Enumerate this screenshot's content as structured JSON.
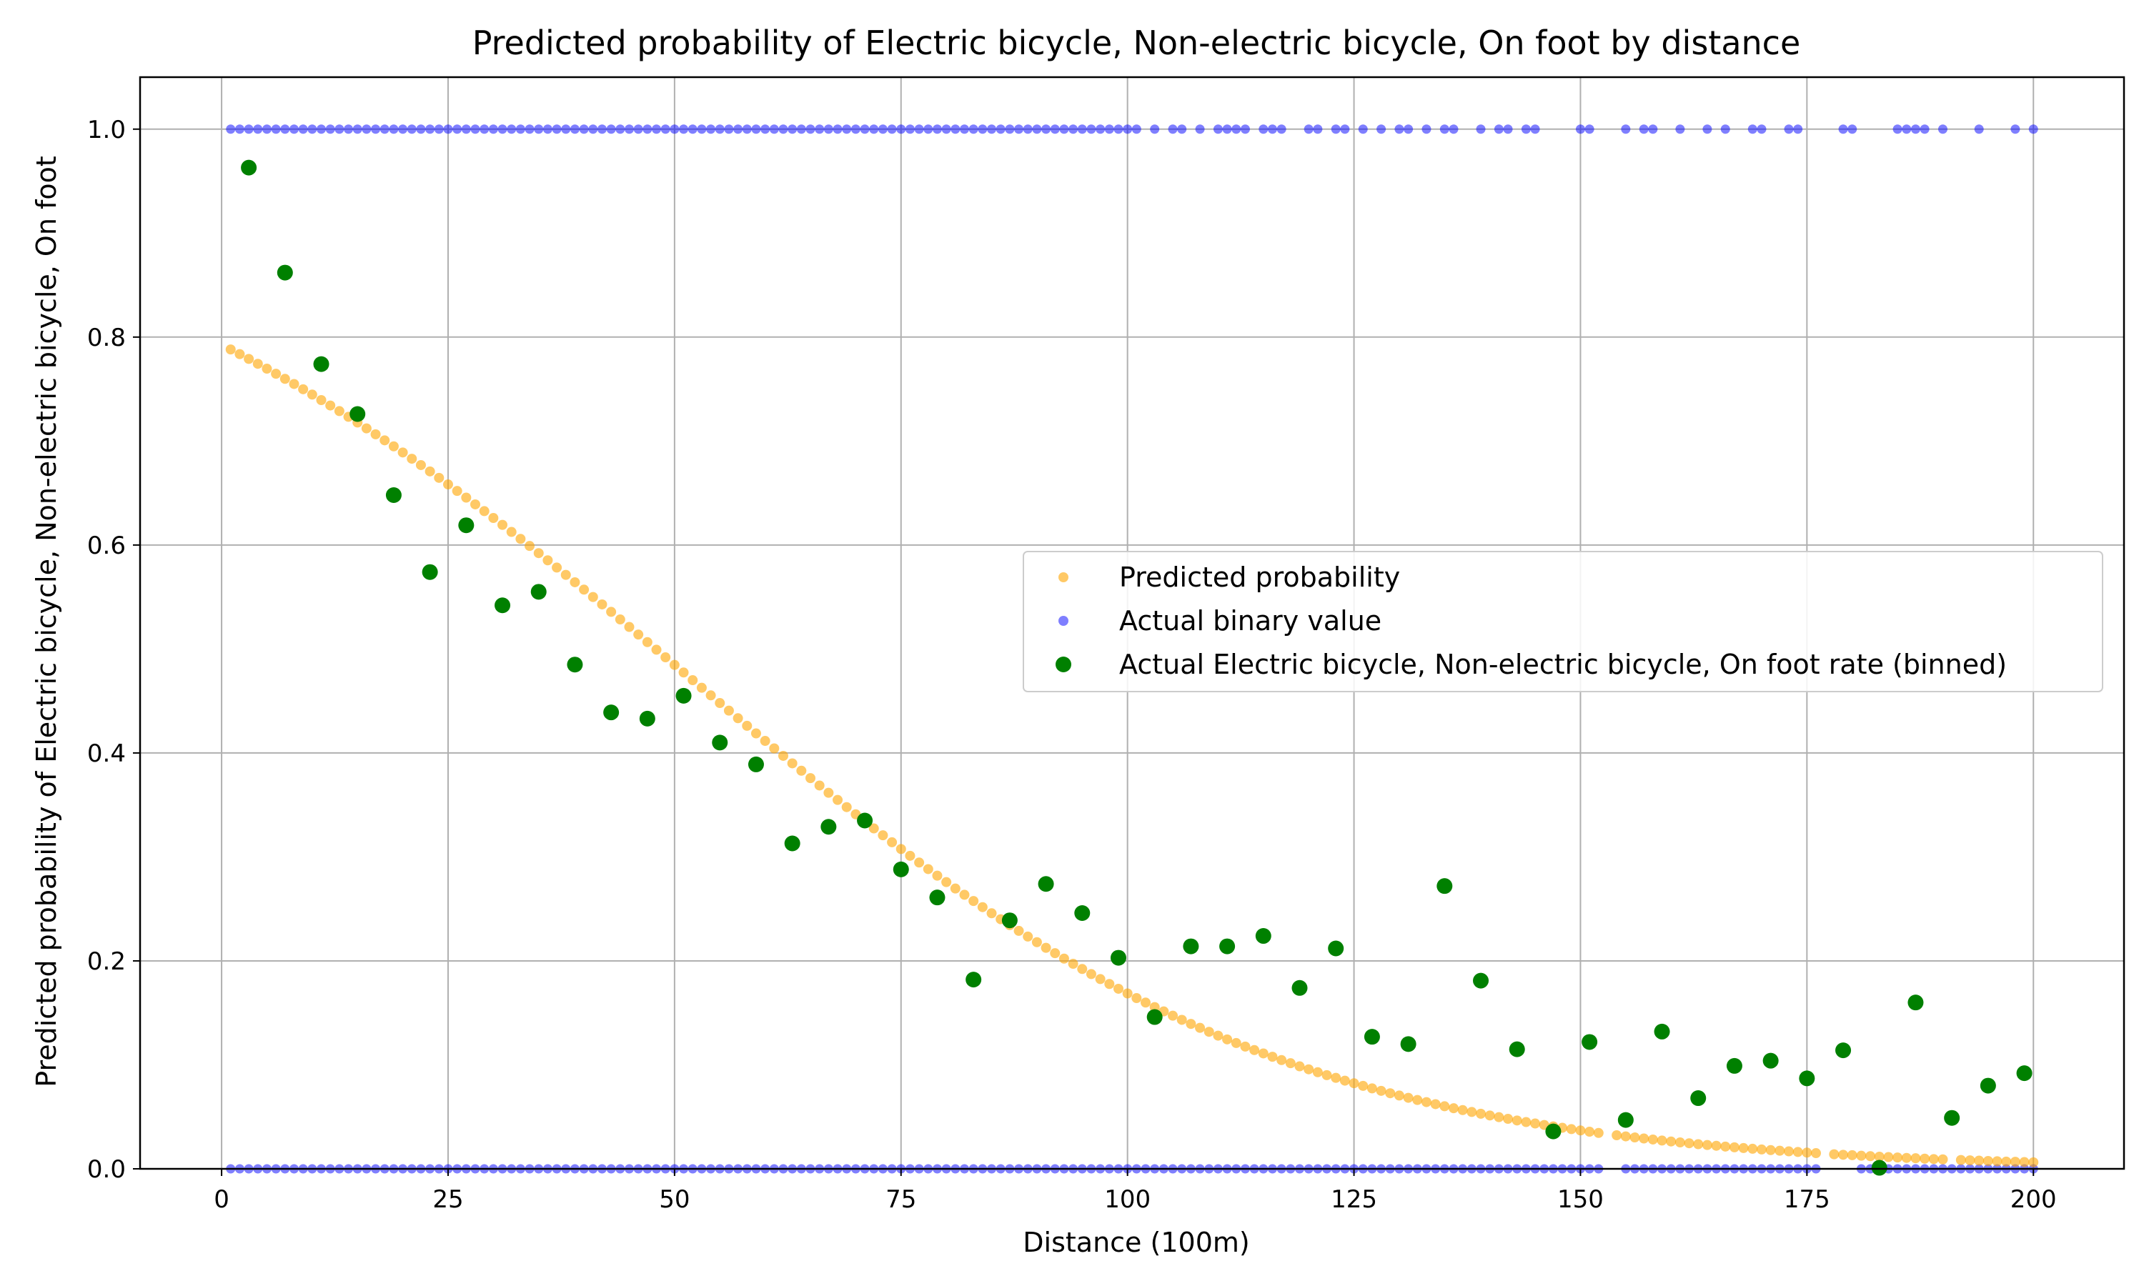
{
  "chart_data": {
    "type": "scatter",
    "title": "Predicted probability of Electric bicycle, Non-electric bicycle, On foot by distance",
    "xlabel": "Distance (100m)",
    "ylabel": "Predicted probability of Electric bicycle, Non-electric bicycle, On foot",
    "xlim": [
      -9,
      210
    ],
    "ylim": [
      0,
      1.05
    ],
    "xticks": [
      0,
      25,
      50,
      75,
      100,
      125,
      150,
      175,
      200
    ],
    "yticks": [
      0.0,
      0.2,
      0.4,
      0.6,
      0.8,
      1.0
    ],
    "xtick_labels": [
      "0",
      "25",
      "50",
      "75",
      "100",
      "125",
      "150",
      "175",
      "200"
    ],
    "ytick_labels": [
      "0.0",
      "0.2",
      "0.4",
      "0.6",
      "0.8",
      "1.0"
    ],
    "grid": true,
    "legend_position": "center-right",
    "predicted_curve": {
      "x_start": 1,
      "x_end": 200,
      "x_step": 1,
      "x_gaps": [
        153,
        177,
        191
      ],
      "model": "logistic",
      "intercept": 1.34,
      "slope": -0.0267,
      "quad": -2.65e-05
    },
    "series": [
      {
        "name": "Predicted probability",
        "color": "#FFA500",
        "marker_alpha": 0.6,
        "x": [],
        "y": []
      },
      {
        "name": "Actual binary value",
        "color": "#0000FF",
        "marker_alpha": 0.5,
        "points_y1_x": [
          1,
          2,
          3,
          4,
          5,
          6,
          7,
          8,
          9,
          10,
          11,
          12,
          13,
          14,
          15,
          16,
          17,
          18,
          19,
          20,
          21,
          22,
          23,
          24,
          25,
          26,
          27,
          28,
          29,
          30,
          31,
          32,
          33,
          34,
          35,
          36,
          37,
          38,
          39,
          40,
          41,
          42,
          43,
          44,
          45,
          46,
          47,
          48,
          49,
          50,
          51,
          52,
          53,
          54,
          55,
          56,
          57,
          58,
          59,
          60,
          61,
          62,
          63,
          64,
          65,
          66,
          67,
          68,
          69,
          70,
          71,
          72,
          73,
          74,
          75,
          76,
          77,
          78,
          79,
          80,
          81,
          82,
          83,
          84,
          85,
          86,
          87,
          88,
          89,
          90,
          91,
          92,
          93,
          94,
          95,
          96,
          97,
          98,
          99,
          100,
          101,
          103,
          105,
          106,
          108,
          110,
          111,
          112,
          113,
          115,
          116,
          117,
          120,
          121,
          123,
          124,
          126,
          128,
          130,
          131,
          133,
          135,
          136,
          139,
          141,
          142,
          144,
          145,
          150,
          151,
          155,
          157,
          158,
          161,
          164,
          166,
          169,
          170,
          173,
          174,
          179,
          180,
          185,
          186,
          187,
          188,
          190,
          194,
          198,
          200
        ],
        "points_y0_x": [
          1,
          2,
          3,
          4,
          5,
          6,
          7,
          8,
          9,
          10,
          11,
          12,
          13,
          14,
          15,
          16,
          17,
          18,
          19,
          20,
          21,
          22,
          23,
          24,
          25,
          26,
          27,
          28,
          29,
          30,
          31,
          32,
          33,
          34,
          35,
          36,
          37,
          38,
          39,
          40,
          41,
          42,
          43,
          44,
          45,
          46,
          47,
          48,
          49,
          50,
          51,
          52,
          53,
          54,
          55,
          56,
          57,
          58,
          59,
          60,
          61,
          62,
          63,
          64,
          65,
          66,
          67,
          68,
          69,
          70,
          71,
          72,
          73,
          74,
          75,
          76,
          77,
          78,
          79,
          80,
          81,
          82,
          83,
          84,
          85,
          86,
          87,
          88,
          89,
          90,
          91,
          92,
          93,
          94,
          95,
          96,
          97,
          98,
          99,
          100,
          101,
          102,
          103,
          104,
          105,
          106,
          107,
          108,
          109,
          110,
          111,
          112,
          113,
          114,
          115,
          116,
          117,
          118,
          119,
          120,
          121,
          122,
          123,
          124,
          125,
          126,
          127,
          128,
          129,
          130,
          131,
          132,
          133,
          134,
          135,
          136,
          137,
          138,
          139,
          140,
          141,
          142,
          143,
          144,
          145,
          146,
          147,
          148,
          149,
          150,
          151,
          152,
          155,
          156,
          157,
          158,
          159,
          160,
          161,
          162,
          163,
          164,
          165,
          166,
          167,
          168,
          169,
          170,
          171,
          172,
          173,
          174,
          175,
          176,
          181,
          182,
          183,
          184,
          185,
          186,
          187,
          188,
          189,
          190,
          191,
          192,
          193,
          194,
          195,
          196,
          197,
          198,
          199,
          200
        ]
      },
      {
        "name": "Actual Electric bicycle, Non-electric bicycle, On foot rate (binned)",
        "color": "#008000",
        "marker_alpha": 1.0,
        "x": [
          3,
          7,
          11,
          15,
          19,
          23,
          27,
          31,
          35,
          39,
          43,
          47,
          51,
          55,
          59,
          63,
          67,
          71,
          75,
          79,
          83,
          87,
          91,
          95,
          99,
          103,
          107,
          111,
          115,
          119,
          123,
          127,
          131,
          135,
          139,
          143,
          147,
          151,
          155,
          159,
          163,
          167,
          171,
          175,
          179,
          183,
          187,
          191,
          195,
          199
        ],
        "y": [
          0.963,
          0.862,
          0.774,
          0.726,
          0.648,
          0.574,
          0.619,
          0.542,
          0.555,
          0.485,
          0.439,
          0.433,
          0.455,
          0.41,
          0.389,
          0.313,
          0.329,
          0.335,
          0.288,
          0.261,
          0.182,
          0.239,
          0.274,
          0.246,
          0.203,
          0.146,
          0.214,
          0.214,
          0.224,
          0.174,
          0.212,
          0.127,
          0.12,
          0.272,
          0.181,
          0.115,
          0.036,
          0.122,
          0.047,
          0.132,
          0.068,
          0.099,
          0.104,
          0.087,
          0.114,
          0.001,
          0.16,
          0.049,
          0.08,
          0.092
        ]
      }
    ]
  }
}
